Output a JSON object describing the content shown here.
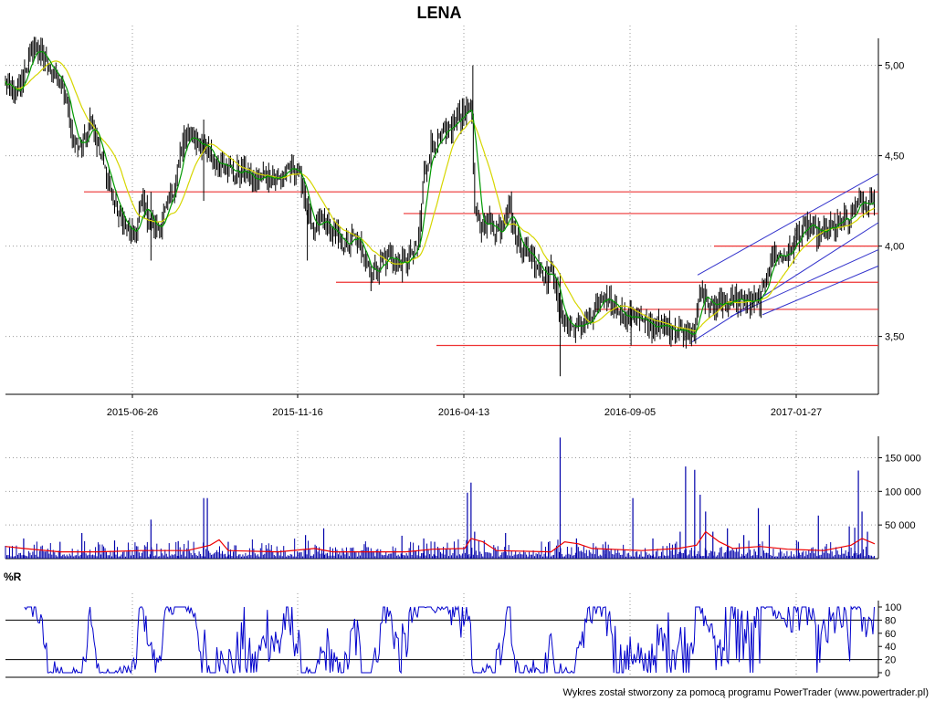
{
  "chart_data": [
    {
      "panel": "price",
      "type": "ohlc",
      "title": "LENA",
      "ylim": [
        3.18,
        5.22
      ],
      "yticks": [
        3.5,
        4.0,
        4.5,
        5.0
      ],
      "ytick_labels": [
        "3,50",
        "4,00",
        "4,50",
        "5,00"
      ],
      "x_tick_labels": [
        "2015-06-26",
        "2015-11-16",
        "2016-04-13",
        "2016-09-05",
        "2017-01-27"
      ],
      "grid": true,
      "colors": {
        "bars": "#000000",
        "ma_short": "#009900",
        "ma_long": "#d6d600",
        "support": "#ee3333",
        "trend": "#3333cc"
      },
      "close_series": [
        [
          0,
          4.9
        ],
        [
          12,
          4.82
        ],
        [
          22,
          4.98
        ],
        [
          32,
          5.1
        ],
        [
          40,
          5.05
        ],
        [
          50,
          4.98
        ],
        [
          58,
          4.92
        ],
        [
          66,
          4.82
        ],
        [
          74,
          4.6
        ],
        [
          84,
          4.55
        ],
        [
          94,
          4.72
        ],
        [
          104,
          4.5
        ],
        [
          112,
          4.38
        ],
        [
          122,
          4.2
        ],
        [
          132,
          4.1
        ],
        [
          142,
          4.05
        ],
        [
          150,
          4.25
        ],
        [
          158,
          4.15
        ],
        [
          166,
          4.08
        ],
        [
          176,
          4.2
        ],
        [
          184,
          4.3
        ],
        [
          192,
          4.5
        ],
        [
          200,
          4.62
        ],
        [
          210,
          4.58
        ],
        [
          220,
          4.55
        ],
        [
          230,
          4.45
        ],
        [
          240,
          4.48
        ],
        [
          250,
          4.4
        ],
        [
          262,
          4.42
        ],
        [
          274,
          4.35
        ],
        [
          286,
          4.4
        ],
        [
          298,
          4.37
        ],
        [
          310,
          4.42
        ],
        [
          318,
          4.43
        ],
        [
          324,
          4.38
        ],
        [
          330,
          4.25
        ],
        [
          338,
          4.05
        ],
        [
          346,
          4.15
        ],
        [
          356,
          4.1
        ],
        [
          364,
          4.05
        ],
        [
          374,
          4.0
        ],
        [
          384,
          4.05
        ],
        [
          392,
          3.98
        ],
        [
          402,
          3.85
        ],
        [
          412,
          3.9
        ],
        [
          422,
          3.95
        ],
        [
          432,
          3.9
        ],
        [
          440,
          3.9
        ],
        [
          448,
          3.97
        ],
        [
          454,
          4.0
        ],
        [
          460,
          4.4
        ],
        [
          468,
          4.55
        ],
        [
          476,
          4.58
        ],
        [
          484,
          4.62
        ],
        [
          492,
          4.67
        ],
        [
          500,
          4.72
        ],
        [
          506,
          4.76
        ],
        [
          512,
          4.8
        ],
        [
          516,
          4.2
        ],
        [
          522,
          4.1
        ],
        [
          530,
          4.15
        ],
        [
          538,
          4.08
        ],
        [
          546,
          4.1
        ],
        [
          554,
          4.25
        ],
        [
          560,
          4.05
        ],
        [
          568,
          4.0
        ],
        [
          576,
          3.95
        ],
        [
          586,
          3.9
        ],
        [
          596,
          3.82
        ],
        [
          602,
          3.88
        ],
        [
          608,
          3.65
        ],
        [
          614,
          3.6
        ],
        [
          622,
          3.55
        ],
        [
          630,
          3.55
        ],
        [
          638,
          3.58
        ],
        [
          646,
          3.6
        ],
        [
          652,
          3.7
        ],
        [
          658,
          3.68
        ],
        [
          664,
          3.7
        ],
        [
          672,
          3.67
        ],
        [
          682,
          3.6
        ],
        [
          692,
          3.62
        ],
        [
          702,
          3.57
        ],
        [
          712,
          3.56
        ],
        [
          722,
          3.55
        ],
        [
          732,
          3.55
        ],
        [
          742,
          3.54
        ],
        [
          752,
          3.52
        ],
        [
          758,
          3.55
        ],
        [
          764,
          3.75
        ],
        [
          770,
          3.7
        ],
        [
          778,
          3.66
        ],
        [
          786,
          3.7
        ],
        [
          794,
          3.68
        ],
        [
          802,
          3.7
        ],
        [
          812,
          3.7
        ],
        [
          822,
          3.68
        ],
        [
          832,
          3.72
        ],
        [
          842,
          3.95
        ],
        [
          852,
          3.95
        ],
        [
          862,
          3.96
        ],
        [
          870,
          4.05
        ],
        [
          876,
          4.08
        ],
        [
          884,
          4.12
        ],
        [
          892,
          4.06
        ],
        [
          900,
          4.08
        ],
        [
          910,
          4.1
        ],
        [
          920,
          4.15
        ],
        [
          928,
          4.12
        ],
        [
          936,
          4.25
        ],
        [
          944,
          4.22
        ],
        [
          950,
          4.24
        ],
        [
          955,
          4.28
        ]
      ],
      "support_lines": [
        {
          "y": 4.3,
          "x_from": 92,
          "x_to": 962
        },
        {
          "y": 4.18,
          "x_from": 442,
          "x_to": 962
        },
        {
          "y": 4.0,
          "x_from": 782,
          "x_to": 962
        },
        {
          "y": 3.8,
          "x_from": 368,
          "x_to": 962
        },
        {
          "y": 3.65,
          "x_from": 652,
          "x_to": 962
        },
        {
          "y": 3.45,
          "x_from": 478,
          "x_to": 962
        }
      ],
      "trend_lines": [
        [
          [
            764,
            3.84
          ],
          [
            962,
            4.4
          ]
        ],
        [
          [
            758,
            3.47
          ],
          [
            962,
            4.13
          ]
        ],
        [
          [
            800,
            3.61
          ],
          [
            962,
            3.98
          ]
        ],
        [
          [
            835,
            3.62
          ],
          [
            962,
            3.89
          ]
        ]
      ]
    },
    {
      "panel": "volume",
      "type": "bar",
      "ylim": [
        0,
        190000
      ],
      "yticks": [
        50000,
        100000,
        150000
      ],
      "ytick_labels": [
        "50 000",
        "100 000",
        "150 000"
      ],
      "colors": {
        "bars": "#0000aa",
        "avg": "#ee0000"
      },
      "spikes": [
        [
          20,
          30000
        ],
        [
          60,
          25000
        ],
        [
          84,
          38000
        ],
        [
          120,
          27000
        ],
        [
          160,
          58000
        ],
        [
          190,
          26000
        ],
        [
          218,
          90000
        ],
        [
          222,
          90000
        ],
        [
          245,
          25000
        ],
        [
          330,
          35000
        ],
        [
          350,
          45000
        ],
        [
          436,
          34000
        ],
        [
          460,
          30000
        ],
        [
          472,
          25000
        ],
        [
          508,
          98000
        ],
        [
          512,
          113000
        ],
        [
          516,
          40000
        ],
        [
          550,
          38000
        ],
        [
          610,
          180000
        ],
        [
          628,
          30000
        ],
        [
          660,
          25000
        ],
        [
          690,
          90000
        ],
        [
          712,
          30000
        ],
        [
          742,
          40000
        ],
        [
          748,
          137000
        ],
        [
          758,
          132000
        ],
        [
          764,
          95000
        ],
        [
          770,
          70000
        ],
        [
          778,
          40000
        ],
        [
          794,
          45000
        ],
        [
          812,
          35000
        ],
        [
          828,
          75000
        ],
        [
          840,
          50000
        ],
        [
          872,
          25000
        ],
        [
          894,
          64000
        ],
        [
          928,
          48000
        ],
        [
          934,
          46000
        ],
        [
          938,
          131000
        ],
        [
          942,
          70000
        ],
        [
          948,
          40000
        ]
      ],
      "avg_series": [
        [
          0,
          18000
        ],
        [
          20,
          15000
        ],
        [
          60,
          10000
        ],
        [
          100,
          10000
        ],
        [
          150,
          12000
        ],
        [
          200,
          12000
        ],
        [
          225,
          20000
        ],
        [
          235,
          28000
        ],
        [
          245,
          12000
        ],
        [
          300,
          10000
        ],
        [
          340,
          15000
        ],
        [
          360,
          10000
        ],
        [
          440,
          10000
        ],
        [
          470,
          14000
        ],
        [
          505,
          15000
        ],
        [
          512,
          30000
        ],
        [
          525,
          25000
        ],
        [
          540,
          12000
        ],
        [
          600,
          10000
        ],
        [
          615,
          25000
        ],
        [
          630,
          22000
        ],
        [
          645,
          15000
        ],
        [
          700,
          12000
        ],
        [
          740,
          15000
        ],
        [
          760,
          20000
        ],
        [
          770,
          40000
        ],
        [
          785,
          25000
        ],
        [
          800,
          15000
        ],
        [
          830,
          18000
        ],
        [
          860,
          14000
        ],
        [
          900,
          12000
        ],
        [
          930,
          20000
        ],
        [
          942,
          30000
        ],
        [
          956,
          22000
        ]
      ]
    },
    {
      "panel": "williams",
      "type": "line",
      "title": "%R",
      "ylim": [
        0,
        100
      ],
      "yticks": [
        0,
        20,
        40,
        60,
        80,
        100
      ],
      "ytick_labels": [
        "0",
        "20",
        "40",
        "60",
        "80",
        "100"
      ],
      "levels": [
        20,
        80
      ],
      "colors": {
        "line": "#0000cc",
        "levels": "#000000"
      }
    }
  ],
  "footer": {
    "credit": "Wykres został stworzony za pomocą programu PowerTrader (www.powertrader.pl)"
  }
}
